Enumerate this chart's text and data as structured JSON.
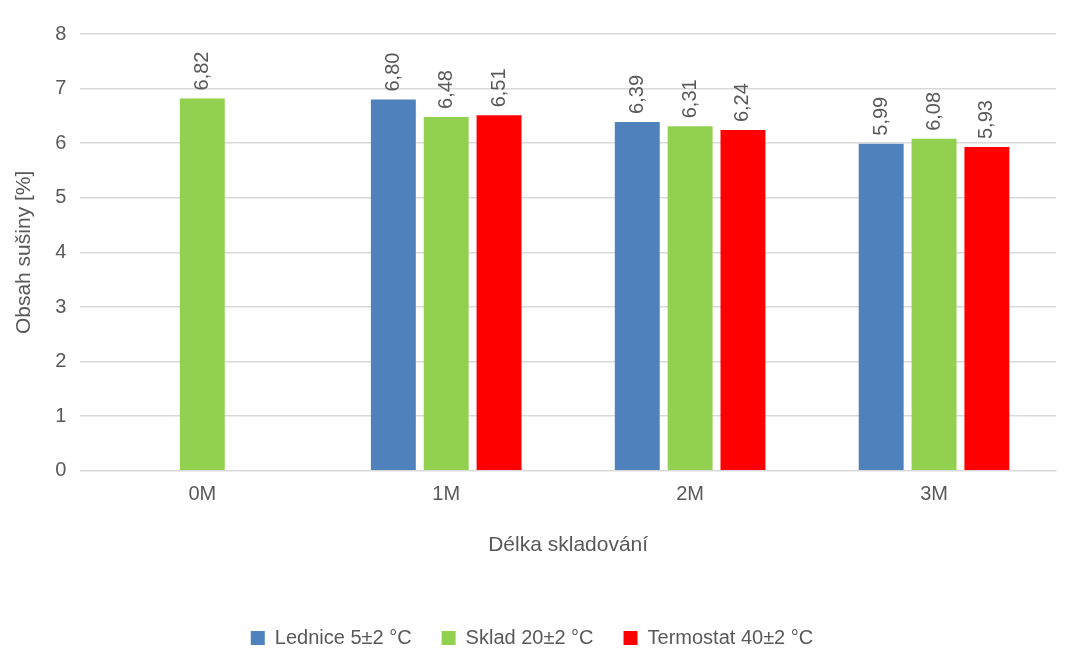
{
  "chart_data": {
    "type": "bar",
    "xlabel": "Délka skladování",
    "ylabel": "Obsah sušiny [%]",
    "categories": [
      "0M",
      "1M",
      "2M",
      "3M"
    ],
    "series": [
      {
        "name": "Lednice 5±2 °C",
        "color": "#4f81bd",
        "values": [
          null,
          6.8,
          6.39,
          5.99
        ],
        "value_labels": [
          null,
          "6,80",
          "6,39",
          "5,99"
        ]
      },
      {
        "name": "Sklad 20±2 °C",
        "color": "#92d050",
        "values": [
          6.82,
          6.48,
          6.31,
          6.08
        ],
        "value_labels": [
          "6,82",
          "6,48",
          "6,31",
          "6,08"
        ]
      },
      {
        "name": "Termostat 40±2 °C",
        "color": "#ff0000",
        "values": [
          null,
          6.51,
          6.24,
          5.93
        ],
        "value_labels": [
          null,
          "6,51",
          "6,24",
          "5,93"
        ]
      }
    ],
    "ylim": [
      0,
      8
    ],
    "yticks": [
      0,
      1,
      2,
      3,
      4,
      5,
      6,
      7,
      8
    ],
    "grid": "y",
    "legend": "bottom"
  }
}
